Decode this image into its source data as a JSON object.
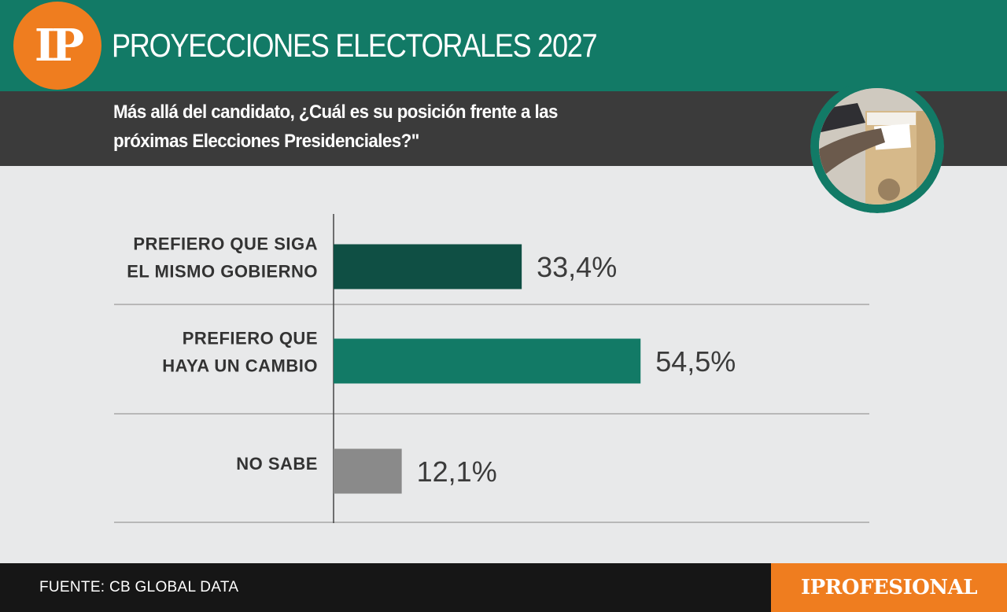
{
  "header": {
    "logo_text": "IP",
    "title": "PROYECCIONES ELECTORALES 2027"
  },
  "question": {
    "text": "Más allá del candidato, ¿Cuál es su posición frente a las próximas Elecciones Presidenciales?\""
  },
  "footer": {
    "source": "FUENTE: CB GLOBAL DATA",
    "brand": "IPROFESIONAL"
  },
  "colors": {
    "header_bg": "#127a66",
    "logo_orange": "#ef7d1f",
    "question_bg": "#3b3b3b",
    "page_bg": "#e8e9ea"
  },
  "chart_data": {
    "type": "bar",
    "orientation": "horizontal",
    "categories": [
      [
        "PREFIERO QUE SIGA",
        "EL MISMO GOBIERNO"
      ],
      [
        "PREFIERO QUE",
        "HAYA UN CAMBIO"
      ],
      [
        "NO SABE"
      ]
    ],
    "values": [
      33.4,
      54.5,
      12.1
    ],
    "value_labels": [
      "33,4%",
      "54,5%",
      "12,1%"
    ],
    "bar_colors": [
      "#0f4f44",
      "#127a66",
      "#8a8a8a"
    ],
    "xlim": [
      0,
      100
    ],
    "grid": false
  }
}
